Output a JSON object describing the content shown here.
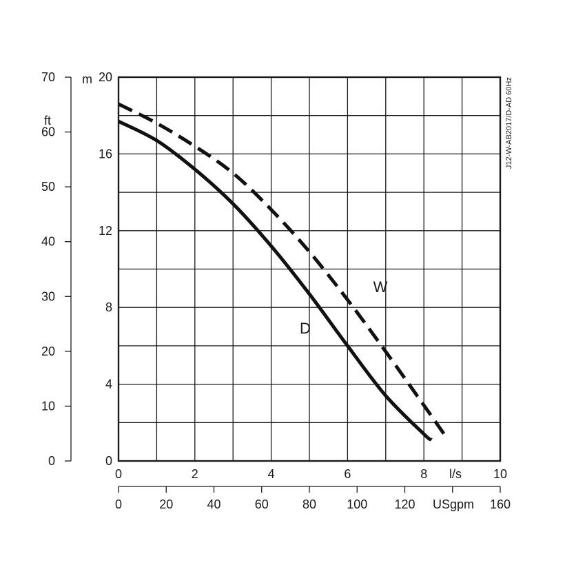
{
  "chart_data": {
    "type": "line",
    "code": "J12-W-AB2017/D-AD 60Hz",
    "x_primary": {
      "unit": "l/s",
      "range": [
        0,
        10
      ],
      "ticks": [
        0,
        2,
        4,
        6,
        8,
        10
      ]
    },
    "x_secondary": {
      "unit": "USgpm",
      "range": [
        0,
        160
      ],
      "ticks": [
        0,
        20,
        40,
        60,
        80,
        100,
        120,
        160
      ]
    },
    "y_primary": {
      "unit": "m",
      "range": [
        0,
        20
      ],
      "ticks": [
        0,
        4,
        8,
        12,
        16,
        20
      ]
    },
    "y_secondary": {
      "unit": "ft",
      "range": [
        0,
        70
      ],
      "ticks": [
        0,
        10,
        20,
        30,
        40,
        50,
        60,
        70
      ]
    },
    "grid": true,
    "series": [
      {
        "name": "W",
        "style": "dashed",
        "x": [
          0,
          1,
          2,
          3,
          4,
          5,
          6,
          7,
          8,
          8.6
        ],
        "y": [
          18.6,
          17.6,
          16.4,
          15.0,
          13.1,
          10.9,
          8.4,
          5.7,
          2.9,
          1.2
        ]
      },
      {
        "name": "D",
        "style": "solid",
        "x": [
          0,
          1,
          2,
          3,
          4,
          5,
          6,
          7,
          8,
          8.2
        ],
        "y": [
          17.7,
          16.7,
          15.2,
          13.4,
          11.2,
          8.7,
          6.0,
          3.4,
          1.4,
          1.1
        ]
      }
    ]
  }
}
